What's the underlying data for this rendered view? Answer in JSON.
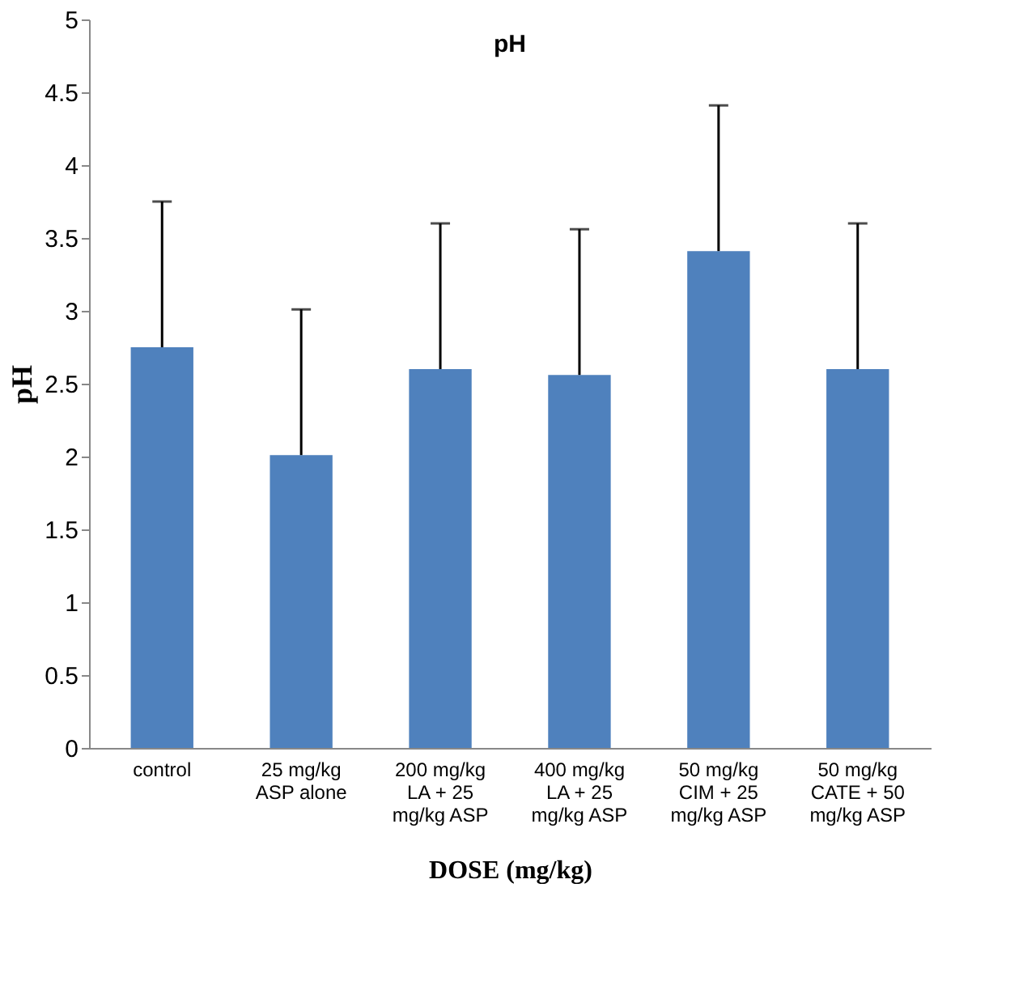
{
  "chart_data": {
    "type": "bar",
    "title": "pH",
    "xlabel": "DOSE (mg/kg)",
    "ylabel": "pH",
    "categories": [
      "control",
      "25 mg/kg\nASP alone",
      "200 mg/kg\nLA + 25\nmg/kg ASP",
      "400 mg/kg\nLA + 25\nmg/kg ASP",
      "50 mg/kg\nCIM + 25\nmg/kg ASP",
      "50 mg/kg\nCATE  + 50\nmg/kg ASP"
    ],
    "values": [
      2.75,
      2.01,
      2.6,
      2.56,
      3.41,
      2.6
    ],
    "errors": [
      [
        2.75,
        3.75
      ],
      [
        2.01,
        3.01
      ],
      [
        2.6,
        3.6
      ],
      [
        2.56,
        3.56
      ],
      [
        3.41,
        4.41
      ],
      [
        2.6,
        3.6
      ]
    ],
    "color": "#4f81bd",
    "ylim": [
      0,
      5
    ],
    "yticks": [
      0,
      0.5,
      1,
      1.5,
      2,
      2.5,
      3,
      3.5,
      4,
      4.5,
      5
    ],
    "grid": false
  }
}
